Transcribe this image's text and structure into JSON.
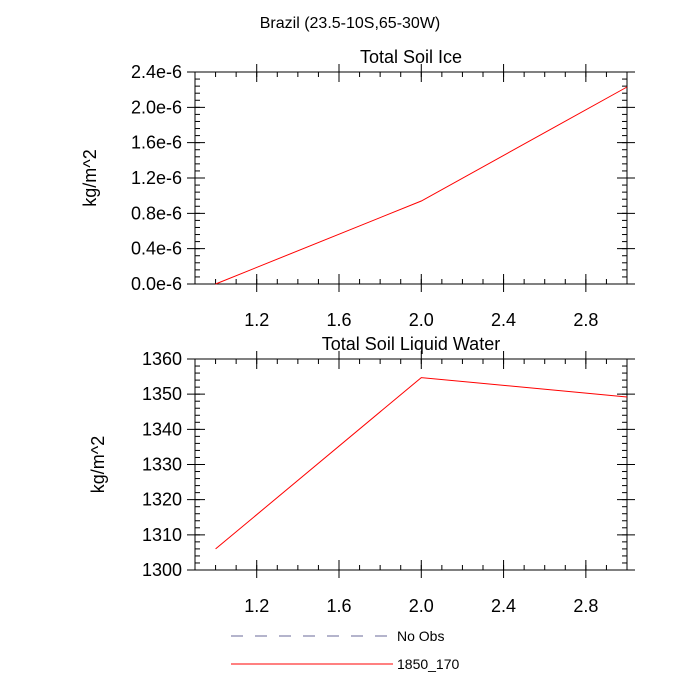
{
  "figure": {
    "title": "Brazil (23.5-10S,65-30W)"
  },
  "chart_data": [
    {
      "type": "line",
      "title": "Total Soil Ice",
      "xlabel": "",
      "ylabel": "kg/m^2",
      "xlim": [
        0.9,
        3.0
      ],
      "ylim": [
        0.0,
        2.4e-06
      ],
      "xticks": [
        1.2,
        1.6,
        2.0,
        2.4,
        2.8
      ],
      "xtick_labels": [
        "1.2",
        "1.6",
        "2.0",
        "2.4",
        "2.8"
      ],
      "yticks": [
        0.0,
        4e-07,
        8e-07,
        1.2e-06,
        1.6e-06,
        2e-06,
        2.4e-06
      ],
      "ytick_labels": [
        "0.0e-6",
        "0.4e-6",
        "0.8e-6",
        "1.2e-6",
        "1.6e-6",
        "2.0e-6",
        "2.4e-6"
      ],
      "series": [
        {
          "name": "1850_170",
          "color": "#ff0000",
          "x": [
            1,
            2,
            3
          ],
          "y": [
            0.0,
            9.4e-07,
            2.23e-06
          ]
        }
      ]
    },
    {
      "type": "line",
      "title": "Total Soil Liquid Water",
      "xlabel": "",
      "ylabel": "kg/m^2",
      "xlim": [
        0.9,
        3.0
      ],
      "ylim": [
        1300,
        1360
      ],
      "xticks": [
        1.2,
        1.6,
        2.0,
        2.4,
        2.8
      ],
      "xtick_labels": [
        "1.2",
        "1.6",
        "2.0",
        "2.4",
        "2.8"
      ],
      "yticks": [
        1300,
        1310,
        1320,
        1330,
        1340,
        1350,
        1360
      ],
      "ytick_labels": [
        "1300",
        "1310",
        "1320",
        "1330",
        "1340",
        "1350",
        "1360"
      ],
      "series": [
        {
          "name": "1850_170",
          "color": "#ff0000",
          "x": [
            1,
            2,
            3
          ],
          "y": [
            1306,
            1354.7,
            1349.2
          ]
        }
      ]
    }
  ],
  "legend": {
    "items": [
      {
        "label": "No Obs",
        "color": "#6a6a9a",
        "style": "dashed"
      },
      {
        "label": "1850_170",
        "color": "#ff0000",
        "style": "solid"
      }
    ]
  }
}
